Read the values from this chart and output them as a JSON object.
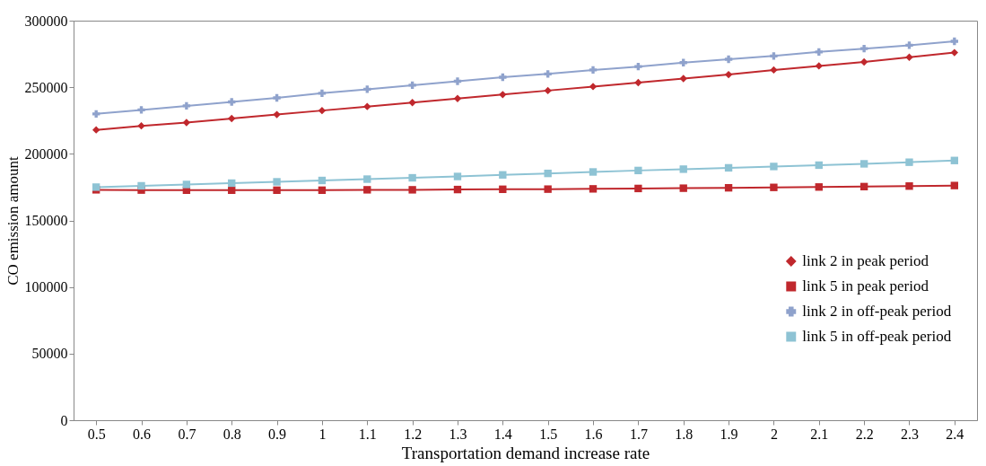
{
  "chart_data": {
    "type": "line",
    "xlabel": "Transportation demand increase rate",
    "ylabel": "CO emission amount",
    "categories": [
      "0.5",
      "0.6",
      "0.7",
      "0.8",
      "0.9",
      "1",
      "1.1",
      "1.2",
      "1.3",
      "1.4",
      "1.5",
      "1.6",
      "1.7",
      "1.8",
      "1.9",
      "2",
      "2.1",
      "2.2",
      "2.3",
      "2.4"
    ],
    "series": [
      {
        "name": "link 2 in peak period",
        "color": "#c0282d",
        "marker": "diamond",
        "values": [
          218000,
          221000,
          223500,
          226500,
          229500,
          232500,
          235500,
          238500,
          241500,
          244500,
          247500,
          250500,
          253500,
          256500,
          259500,
          263000,
          266000,
          269000,
          272500,
          276000
        ]
      },
      {
        "name": "link 5 in peak period",
        "color": "#c0282d",
        "marker": "square",
        "values": [
          173000,
          172800,
          172700,
          172700,
          172700,
          172700,
          173000,
          173000,
          173200,
          173400,
          173500,
          173700,
          174000,
          174200,
          174500,
          174800,
          175100,
          175400,
          175800,
          176200
        ]
      },
      {
        "name": "link 2 in off-peak period",
        "color": "#8fa2cc",
        "marker": "cross",
        "values": [
          230000,
          233000,
          236000,
          239000,
          242000,
          245500,
          248500,
          251500,
          254500,
          257500,
          260000,
          263000,
          265500,
          268500,
          271000,
          273500,
          276500,
          279000,
          281500,
          284500
        ]
      },
      {
        "name": "link 5 in off-peak period",
        "color": "#8ec3d4",
        "marker": "square",
        "values": [
          175000,
          176000,
          177000,
          178000,
          179000,
          180000,
          181000,
          182000,
          183000,
          184200,
          185300,
          186400,
          187500,
          188500,
          189500,
          190500,
          191500,
          192500,
          193700,
          195000
        ]
      }
    ],
    "ylim": [
      0,
      300000
    ],
    "yticks": [
      0,
      50000,
      100000,
      150000,
      200000,
      250000,
      300000
    ],
    "grid": false,
    "legend": "right",
    "line_style": "solid"
  }
}
